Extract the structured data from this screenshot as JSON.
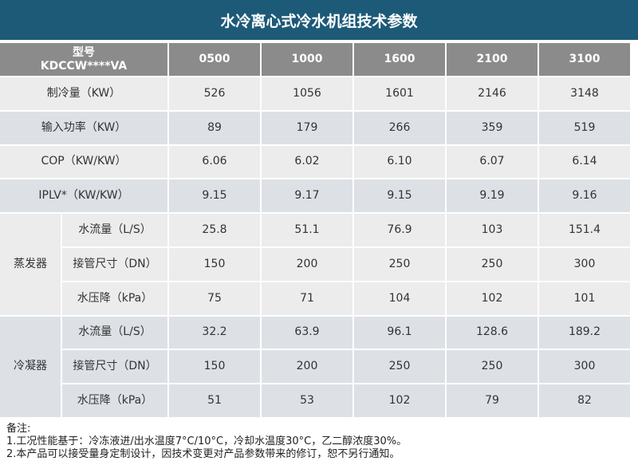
{
  "title": "水冷离心式冷水机组技术参数",
  "table": {
    "header": {
      "model_label": "型号",
      "model_code": "KDCCW****VA",
      "columns": [
        "0500",
        "1000",
        "1600",
        "2100",
        "3100"
      ]
    },
    "rows": [
      {
        "label": "制冷量（KW）",
        "cells": [
          "526",
          "1056",
          "1601",
          "2146",
          "3148"
        ]
      },
      {
        "label": "输入功率（KW）",
        "cells": [
          "89",
          "179",
          "266",
          "359",
          "519"
        ]
      },
      {
        "label": "COP（KW/KW）",
        "cells": [
          "6.06",
          "6.02",
          "6.10",
          "6.07",
          "6.14"
        ]
      },
      {
        "label": "IPLV*（KW/KW）",
        "cells": [
          "9.15",
          "9.17",
          "9.15",
          "9.19",
          "9.16"
        ]
      }
    ],
    "groups": [
      {
        "label": "蒸发器",
        "rows": [
          {
            "label": "水流量（L/S）",
            "cells": [
              "25.8",
              "51.1",
              "76.9",
              "103",
              "151.4"
            ]
          },
          {
            "label": "接管尺寸（DN）",
            "cells": [
              "150",
              "200",
              "250",
              "250",
              "300"
            ]
          },
          {
            "label": "水压降（kPa）",
            "cells": [
              "75",
              "71",
              "104",
              "102",
              "101"
            ]
          }
        ]
      },
      {
        "label": "冷凝器",
        "rows": [
          {
            "label": "水流量（L/S）",
            "cells": [
              "32.2",
              "63.9",
              "96.1",
              "128.6",
              "189.2"
            ]
          },
          {
            "label": "接管尺寸（DN）",
            "cells": [
              "150",
              "200",
              "250",
              "250",
              "300"
            ]
          },
          {
            "label": "水压降（kPa）",
            "cells": [
              "51",
              "53",
              "102",
              "79",
              "82"
            ]
          }
        ]
      }
    ]
  },
  "notes": {
    "heading": "备注:",
    "lines": [
      "1.工况性能基于：冷冻液进/出水温度7°C/10°C，冷却水温度30°C，乙二醇浓度30%。",
      "2.本产品可以接受量身定制设计，因技术变更对产品参数带来的修订，恕不另行通知。"
    ]
  }
}
